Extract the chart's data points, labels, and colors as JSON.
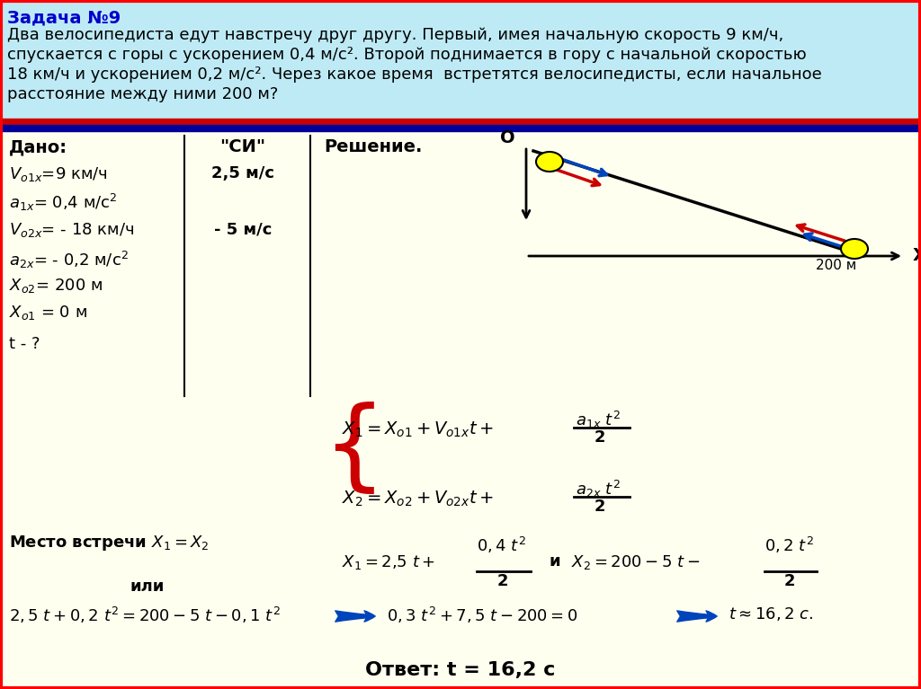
{
  "bg_header": "#beeaf5",
  "bg_body": "#fffff0",
  "header_title": "Задача №9",
  "header_text_line1": "Два велосипедиста едут навстречу друг другу. Первый, имея начальную скорость 9 км/ч,",
  "header_text_line2": "спускается с горы с ускорением 0,4 м/с². Второй поднимается в гору с начальной скоростью",
  "header_text_line3": "18 км/ч и ускорением 0,2 м/с². Через какое время  встретятся велосипедисты, если начальное",
  "header_text_line4": "расстояние между ними 200 м?",
  "sep_red": "#cc0000",
  "sep_blue": "#000099",
  "title_color": "#0000cc",
  "black": "#000000",
  "red": "#cc0000",
  "blue": "#0044bb",
  "yellow": "#ffff00",
  "cyclist_stroke": "#000000",
  "answer_text": "Ответ: t = 16,2 с"
}
